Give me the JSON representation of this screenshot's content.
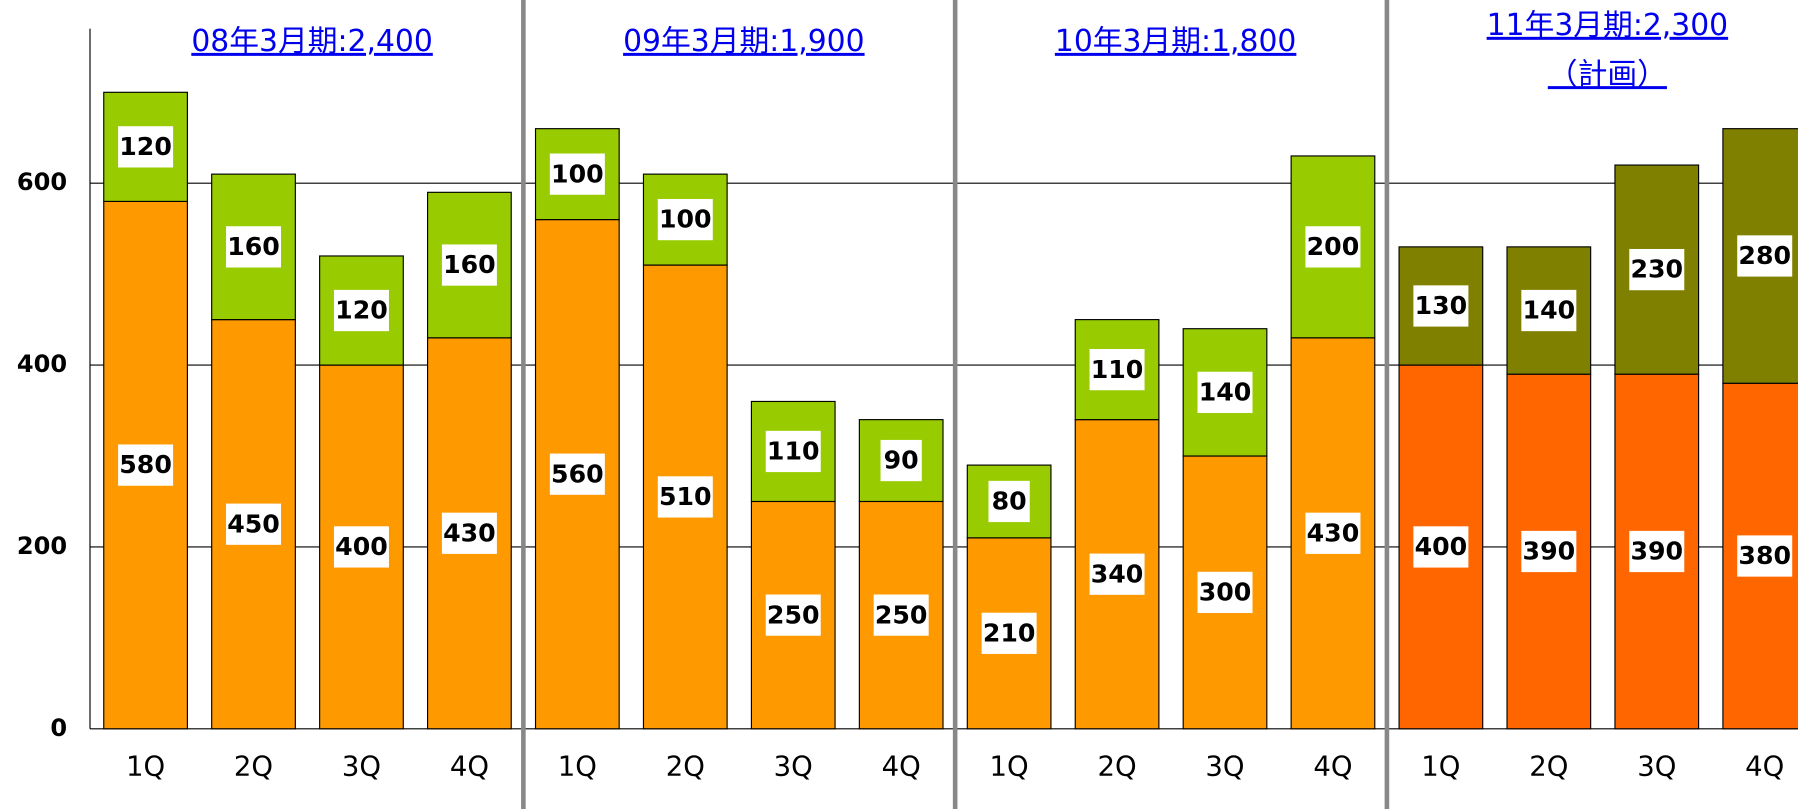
{
  "chart_data": {
    "type": "stacked_bar",
    "groups": [
      {
        "label": "08年3月期:2,400"
      },
      {
        "label": "09年3月期:1,900"
      },
      {
        "label": "10年3月期:1,800"
      },
      {
        "label": "11年3月期:2,300",
        "note": "（計画）"
      }
    ],
    "categories": [
      "1Q",
      "2Q",
      "3Q",
      "4Q",
      "1Q",
      "2Q",
      "3Q",
      "4Q",
      "1Q",
      "2Q",
      "3Q",
      "4Q",
      "1Q",
      "2Q",
      "3Q",
      "4Q"
    ],
    "series": [
      {
        "values": [
          580,
          450,
          400,
          430,
          560,
          510,
          250,
          250,
          210,
          340,
          300,
          430,
          400,
          390,
          390,
          380
        ],
        "colors": [
          "#ff9900",
          "#ff9900",
          "#ff9900",
          "#ff9900",
          "#ff9900",
          "#ff9900",
          "#ff9900",
          "#ff9900",
          "#ff9900",
          "#ff9900",
          "#ff9900",
          "#ff9900",
          "#ff6600",
          "#ff6600",
          "#ff6600",
          "#ff6600"
        ]
      },
      {
        "values": [
          120,
          160,
          120,
          160,
          100,
          100,
          110,
          90,
          80,
          110,
          140,
          200,
          130,
          140,
          230,
          280
        ],
        "colors": [
          "#99cc00",
          "#99cc00",
          "#99cc00",
          "#99cc00",
          "#99cc00",
          "#99cc00",
          "#99cc00",
          "#99cc00",
          "#99cc00",
          "#99cc00",
          "#99cc00",
          "#99cc00",
          "#808000",
          "#808000",
          "#808000",
          "#808000"
        ]
      }
    ],
    "ylim": [
      0,
      770
    ],
    "yticks": [
      0,
      200,
      400,
      600
    ],
    "grid": true
  }
}
